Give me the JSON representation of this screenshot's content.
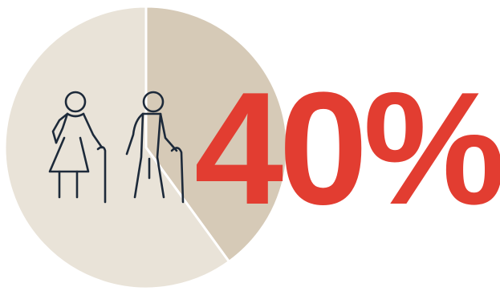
{
  "chart_data": {
    "type": "pie",
    "slices": [
      {
        "value": 40,
        "color": "#d6cab7"
      },
      {
        "value": 60,
        "color": "#e9e3d8"
      }
    ],
    "highlight_label": "40%",
    "highlight_color": "#e23d31"
  },
  "icons": [
    {
      "name": "elderly-woman-with-cane-icon",
      "color": "#1d2a3a"
    },
    {
      "name": "elderly-man-with-cane-icon",
      "color": "#1d2a3a"
    }
  ]
}
